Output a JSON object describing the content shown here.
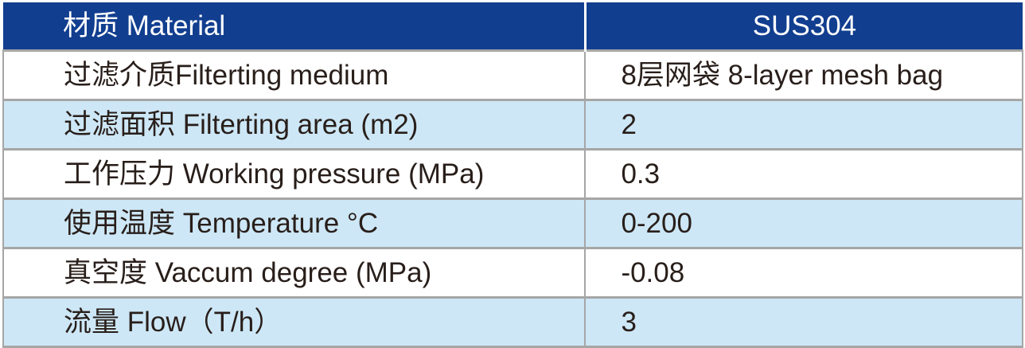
{
  "table": {
    "header": {
      "label": "材质 Material",
      "value": "SUS304"
    },
    "rows": [
      {
        "label": "过滤介质Filterting medium",
        "value": "8层网袋 8-layer mesh bag"
      },
      {
        "label": "过滤面积 Filterting area (m2)",
        "value": "2"
      },
      {
        "label": "工作压力 Working pressure (MPa)",
        "value": "0.3"
      },
      {
        "label": "使用温度 Temperature °C",
        "value": "0-200"
      },
      {
        "label": "真空度 Vaccum degree (MPa)",
        "value": "-0.08"
      },
      {
        "label": "流量 Flow（T/h）",
        "value": "3"
      }
    ],
    "colors": {
      "header_bg": "#113E8F",
      "header_text": "#FFFFFF",
      "row_bg": "#FFFFFF",
      "row_alt_bg": "#CDE7F6",
      "border_gray": "#A6A6A6",
      "body_text": "#281E1A"
    }
  }
}
